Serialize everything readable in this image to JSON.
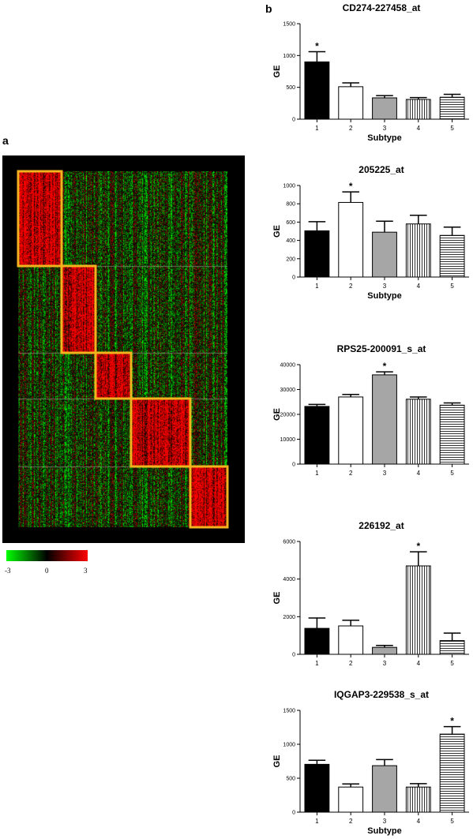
{
  "panels": {
    "a": "a",
    "b": "b"
  },
  "heatmap": {
    "colorbar": {
      "min_label": "-3",
      "mid_label": "0",
      "max_label": "3",
      "low_color": "#00ff00",
      "mid_color": "#000000",
      "high_color": "#ff0000"
    },
    "highlight_color": "#f5b21f",
    "clusters": 5
  },
  "chart_data": [
    {
      "type": "bar",
      "title": "CD274-227458_at",
      "xlabel": "Subtype",
      "ylabel": "GE",
      "categories": [
        "1",
        "2",
        "3",
        "4",
        "5"
      ],
      "values": [
        900,
        510,
        335,
        310,
        345
      ],
      "errors": [
        160,
        60,
        35,
        30,
        45
      ],
      "ylim": [
        0,
        1500
      ],
      "yticks": [
        "0",
        "500",
        "1000",
        "1500"
      ],
      "significant": [
        true,
        false,
        false,
        false,
        false
      ],
      "significance_mark": "*"
    },
    {
      "type": "bar",
      "title": "205225_at",
      "xlabel": "Subtype",
      "ylabel": "GE",
      "categories": [
        "1",
        "2",
        "3",
        "4",
        "5"
      ],
      "values": [
        505,
        815,
        490,
        580,
        455
      ],
      "errors": [
        100,
        115,
        120,
        95,
        90
      ],
      "ylim": [
        0,
        1000
      ],
      "yticks": [
        "0",
        "200",
        "400",
        "600",
        "800",
        "1000"
      ],
      "significant": [
        false,
        true,
        false,
        false,
        false
      ],
      "significance_mark": "*"
    },
    {
      "type": "bar",
      "title": "RPS25-200091_s_at",
      "xlabel": "",
      "ylabel": "GE",
      "categories": [
        "1",
        "2",
        "3",
        "4",
        "5"
      ],
      "values": [
        23200,
        27000,
        35900,
        26100,
        23700
      ],
      "errors": [
        800,
        1000,
        1200,
        900,
        900
      ],
      "ylim": [
        0,
        40000
      ],
      "yticks": [
        "0",
        "10000",
        "20000",
        "30000",
        "40000"
      ],
      "significant": [
        false,
        false,
        true,
        false,
        false
      ],
      "significance_mark": "*"
    },
    {
      "type": "bar",
      "title": "226192_at",
      "xlabel": "",
      "ylabel": "GE",
      "categories": [
        "1",
        "2",
        "3",
        "4",
        "5"
      ],
      "values": [
        1380,
        1510,
        370,
        4700,
        730
      ],
      "errors": [
        550,
        300,
        100,
        750,
        400
      ],
      "ylim": [
        0,
        6000
      ],
      "yticks": [
        "0",
        "2000",
        "4000",
        "6000"
      ],
      "significant": [
        false,
        false,
        false,
        true,
        false
      ],
      "significance_mark": "*"
    },
    {
      "type": "bar",
      "title": "IQGAP3-229538_s_at",
      "xlabel": "Subtype",
      "ylabel": "GE",
      "categories": [
        "1",
        "2",
        "3",
        "4",
        "5"
      ],
      "values": [
        705,
        370,
        685,
        370,
        1150
      ],
      "errors": [
        60,
        45,
        90,
        50,
        110
      ],
      "ylim": [
        0,
        1500
      ],
      "yticks": [
        "0",
        "500",
        "1000",
        "1500"
      ],
      "significant": [
        false,
        false,
        false,
        false,
        true
      ],
      "significance_mark": "*"
    }
  ],
  "bar_styles": [
    "solid-black",
    "white",
    "solid-gray",
    "vertical-stripes",
    "horizontal-stripes"
  ],
  "colors": {
    "bar_fill_gray": "#a6a6a6",
    "bar_stroke": "#000000"
  }
}
